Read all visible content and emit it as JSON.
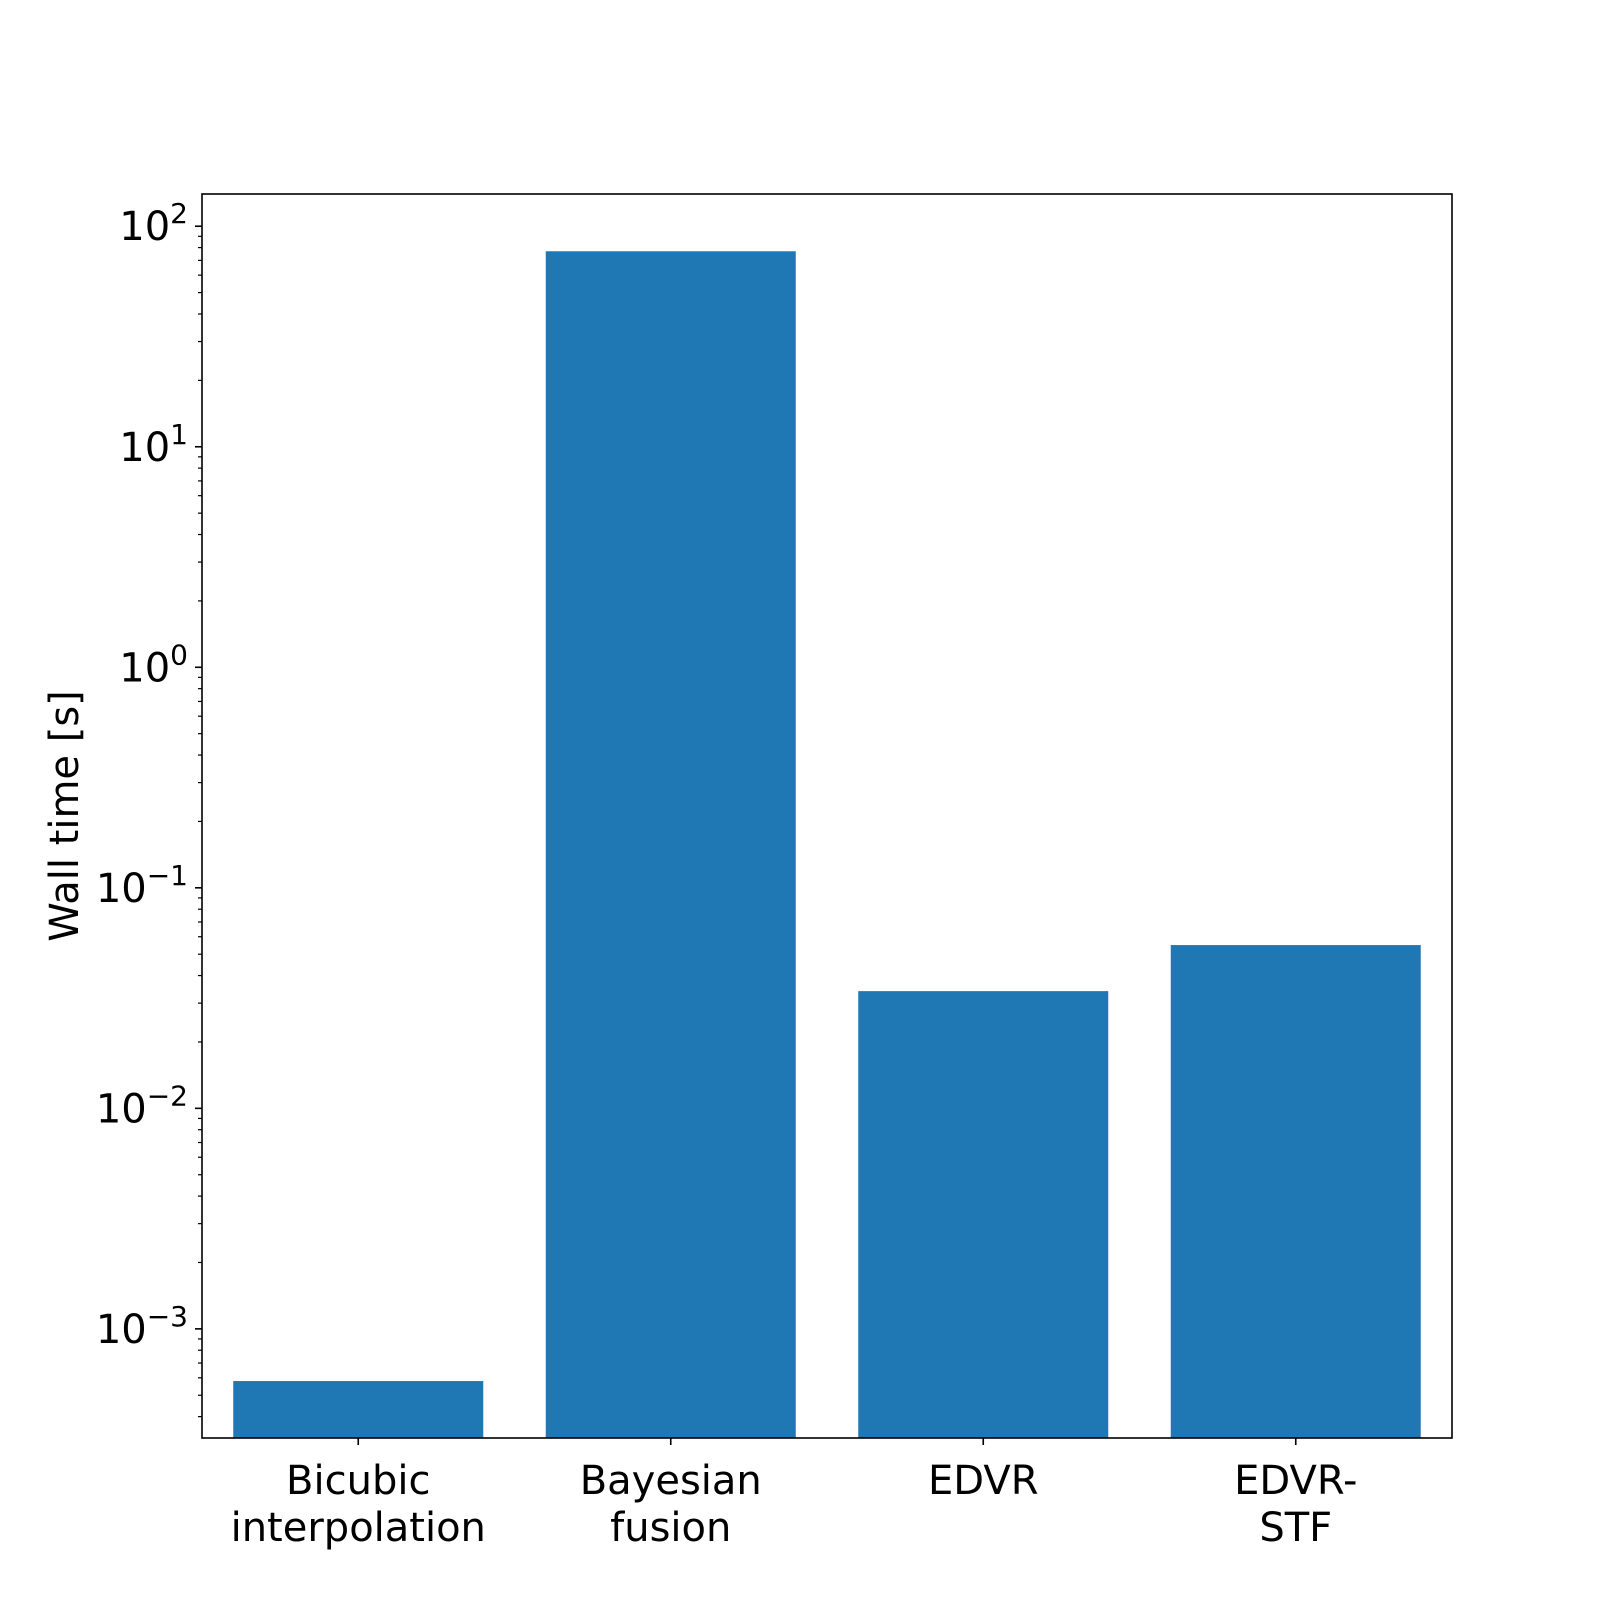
{
  "chart_data": {
    "type": "bar",
    "title": "",
    "xlabel": "",
    "ylabel": "Wall time [s]",
    "yscale": "log",
    "ylim": [
      0.00032,
      140
    ],
    "grid": false,
    "bar_color": "#1f77b4",
    "categories": [
      [
        "Bicubic",
        "interpolation"
      ],
      [
        "Bayesian",
        "fusion"
      ],
      [
        "EDVR"
      ],
      [
        "EDVR-",
        "STF"
      ]
    ],
    "values": [
      0.00058,
      77,
      0.034,
      0.055
    ],
    "y_ticks": [
      {
        "value": 0.001,
        "base": "10",
        "exp": "−3"
      },
      {
        "value": 0.01,
        "base": "10",
        "exp": "−2"
      },
      {
        "value": 0.1,
        "base": "10",
        "exp": "−1"
      },
      {
        "value": 1,
        "base": "10",
        "exp": "0"
      },
      {
        "value": 10,
        "base": "10",
        "exp": "1"
      },
      {
        "value": 100,
        "base": "10",
        "exp": "2"
      }
    ]
  }
}
